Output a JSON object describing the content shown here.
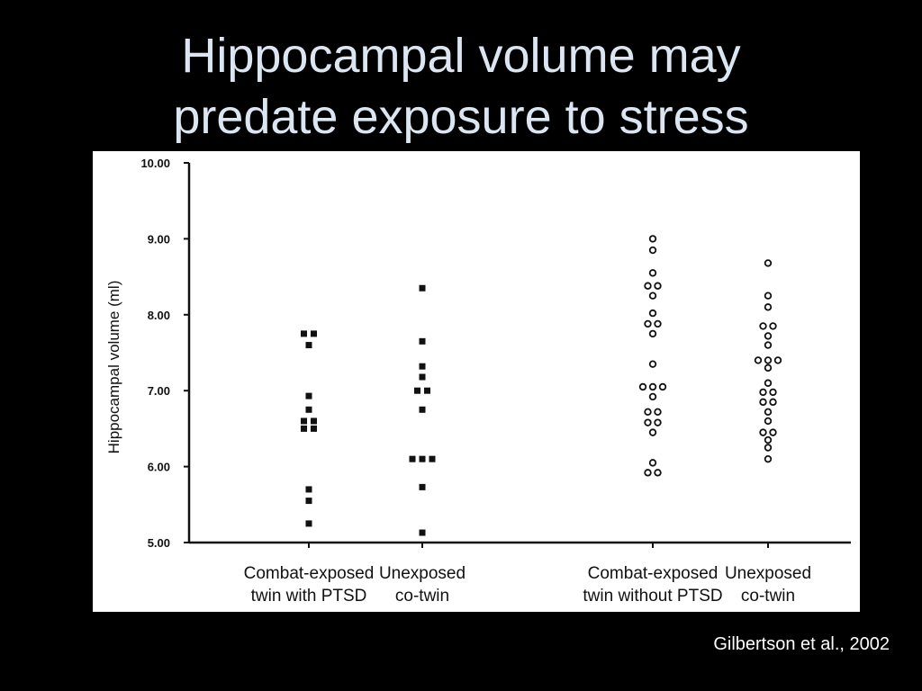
{
  "slide": {
    "title_line1": "Hippocampal volume may",
    "title_line2": "predate exposure to stress",
    "citation": "Gilbertson et al., 2002"
  },
  "colors": {
    "background": "#000000",
    "title": "#dce6f2",
    "panel": "#ffffff",
    "ink": "#111111"
  },
  "chart_data": {
    "type": "scatter",
    "title": "",
    "xlabel": "",
    "ylabel": "Hippocampal volume (ml)",
    "ylim": [
      5.0,
      10.0
    ],
    "yticks": [
      "5.00",
      "6.00",
      "7.00",
      "8.00",
      "9.00",
      "10.00"
    ],
    "grid": false,
    "legend": "none",
    "categories": [
      [
        "Combat-exposed",
        "twin with PTSD"
      ],
      [
        "Unexposed",
        "co-twin"
      ],
      [
        "Combat-exposed",
        "twin without PTSD"
      ],
      [
        "Unexposed",
        "co-twin"
      ]
    ],
    "series": [
      {
        "marker": "filled-square",
        "values": [
          7.75,
          7.75,
          7.6,
          6.93,
          6.75,
          6.6,
          6.6,
          6.5,
          6.5,
          5.7,
          5.55,
          5.25
        ]
      },
      {
        "marker": "filled-square",
        "values": [
          8.35,
          7.65,
          7.32,
          7.18,
          7.0,
          7.0,
          6.75,
          6.1,
          6.1,
          6.1,
          5.73,
          5.13
        ]
      },
      {
        "marker": "open-circle",
        "values": [
          9.0,
          8.85,
          8.55,
          8.38,
          8.38,
          8.25,
          8.02,
          7.88,
          7.88,
          7.75,
          7.35,
          7.05,
          7.05,
          7.05,
          6.92,
          6.72,
          6.72,
          6.58,
          6.58,
          6.45,
          6.05,
          5.92,
          5.92
        ]
      },
      {
        "marker": "open-circle",
        "values": [
          8.68,
          8.25,
          8.1,
          7.85,
          7.85,
          7.72,
          7.6,
          7.4,
          7.4,
          7.4,
          7.3,
          7.1,
          6.98,
          6.98,
          6.85,
          6.85,
          6.72,
          6.6,
          6.45,
          6.45,
          6.35,
          6.25,
          6.1
        ]
      }
    ]
  }
}
